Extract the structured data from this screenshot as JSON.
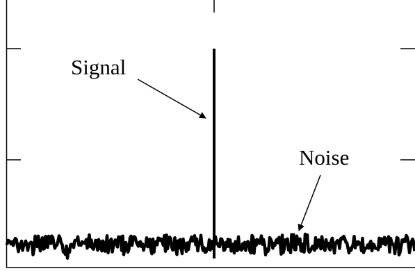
{
  "labels": {
    "signal": "Signal",
    "noise": "Noise"
  }
}
